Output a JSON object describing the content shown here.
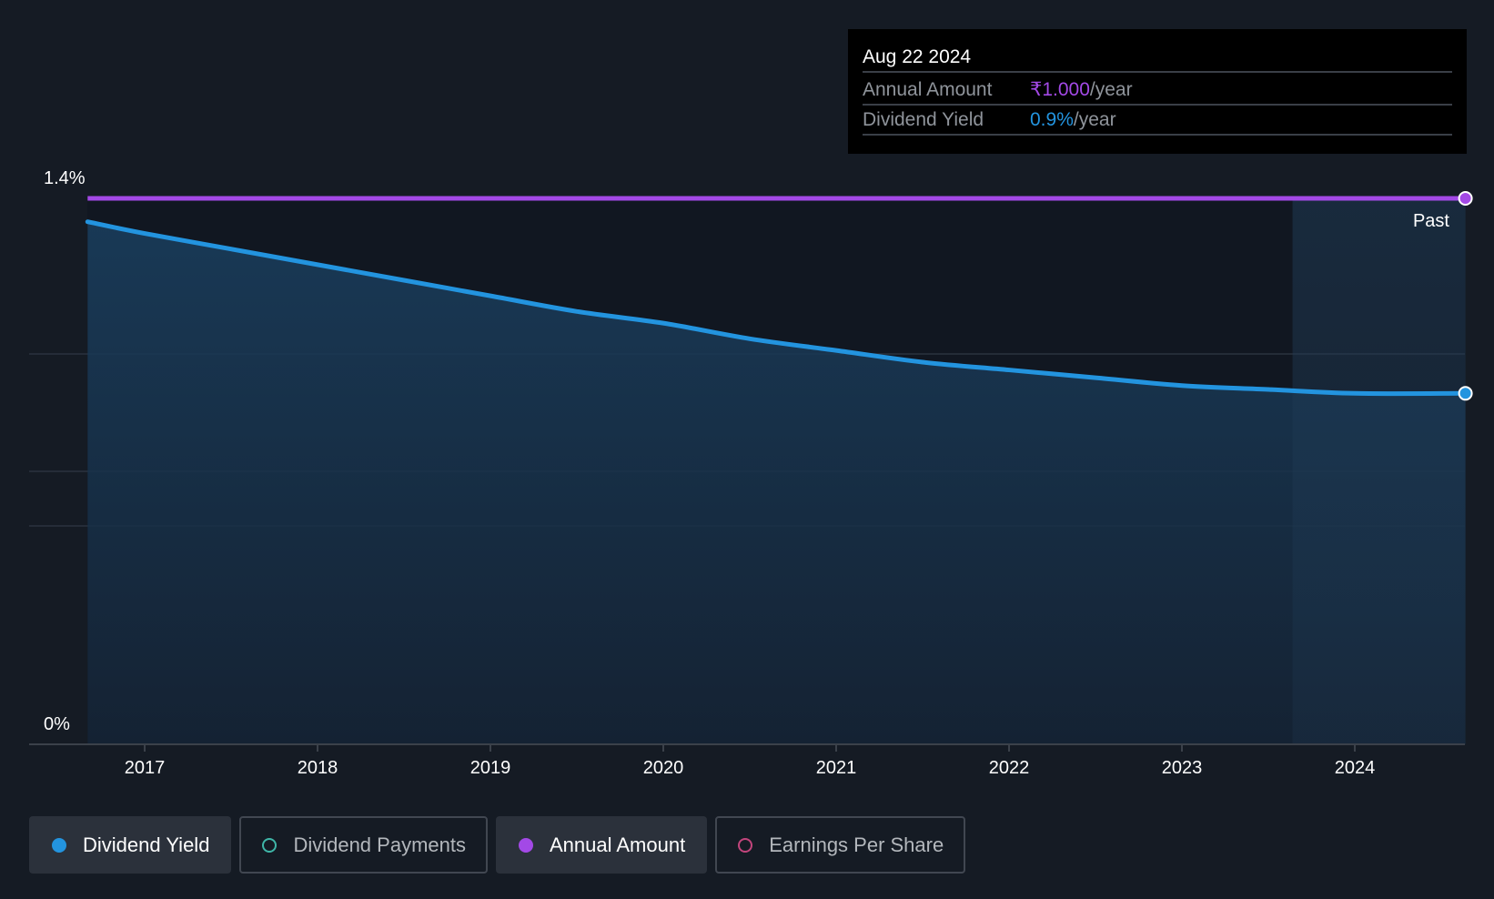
{
  "tooltip": {
    "date": "Aug 22 2024",
    "rows": [
      {
        "label": "Annual Amount",
        "value": "₹1.000",
        "unit": "/year"
      },
      {
        "label": "Dividend Yield",
        "value": "0.9%",
        "unit": "/year"
      }
    ]
  },
  "legend": [
    {
      "label": "Dividend Yield",
      "color": "#2394df",
      "active": true
    },
    {
      "label": "Dividend Payments",
      "color": "#3fb6a8",
      "active": false
    },
    {
      "label": "Annual Amount",
      "color": "#a349e6",
      "active": true
    },
    {
      "label": "Earnings Per Share",
      "color": "#c2457c",
      "active": false
    }
  ],
  "colors": {
    "dividend_yield": "#2394df",
    "annual_amount": "#a349e6",
    "background": "#151b24"
  },
  "chart_data": {
    "type": "area",
    "x_ticks": [
      "2017",
      "2018",
      "2019",
      "2020",
      "2021",
      "2022",
      "2023",
      "2024"
    ],
    "y_ticks": [
      "0%",
      "1.4%"
    ],
    "ylim": [
      0,
      1.4
    ],
    "past_label": "Past",
    "series": [
      {
        "name": "Dividend Yield",
        "color": "#2394df",
        "x": [
          2016.67,
          2017.0,
          2017.5,
          2018.0,
          2018.5,
          2019.0,
          2019.5,
          2020.0,
          2020.5,
          2021.0,
          2021.5,
          2022.0,
          2022.5,
          2023.0,
          2023.5,
          2024.0,
          2024.64
        ],
        "y": [
          1.34,
          1.31,
          1.27,
          1.23,
          1.19,
          1.15,
          1.11,
          1.08,
          1.04,
          1.01,
          0.98,
          0.96,
          0.94,
          0.92,
          0.91,
          0.9,
          0.9
        ]
      },
      {
        "name": "Annual Amount",
        "color": "#a349e6",
        "x": [
          2016.67,
          2024.64
        ],
        "y": [
          1.4,
          1.4
        ]
      }
    ]
  }
}
